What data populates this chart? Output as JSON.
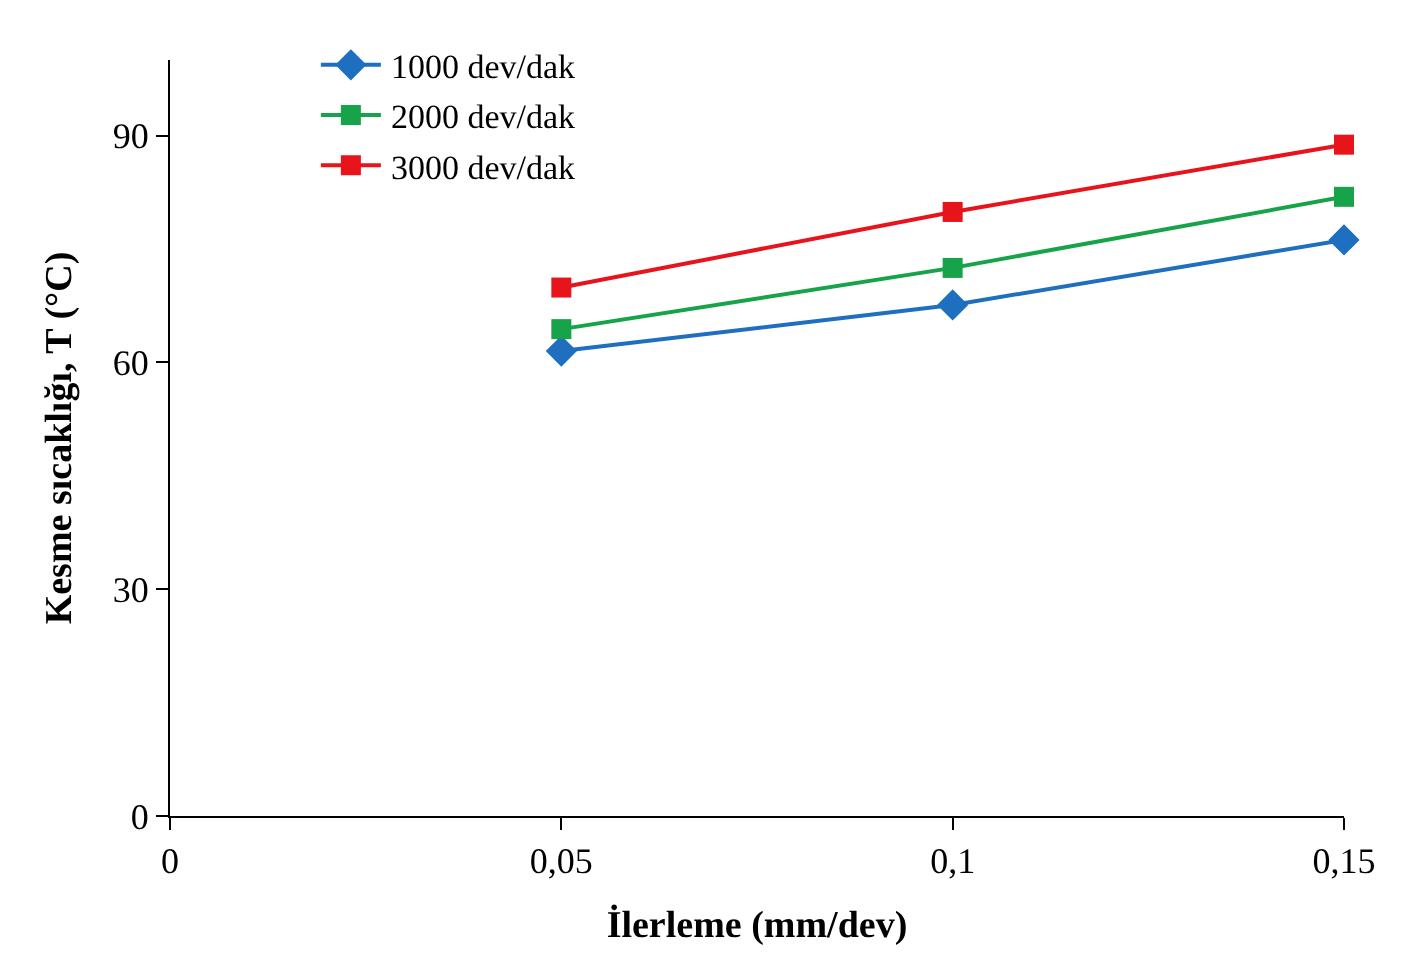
{
  "chart_data": {
    "type": "line",
    "xlabel": "İlerleme (mm/dev)",
    "ylabel": "Kesme sıcaklığı, T (°C)",
    "x": [
      0.05,
      0.1,
      0.15
    ],
    "series": [
      {
        "name": "1000 dev/dak",
        "color": "#1f6fc0",
        "marker": "diamond",
        "values": [
          61.5,
          67.6,
          76.2
        ]
      },
      {
        "name": "2000 dev/dak",
        "color": "#17a34a",
        "marker": "square",
        "values": [
          64.4,
          72.5,
          81.9
        ]
      },
      {
        "name": "3000 dev/dak",
        "color": "#e8141b",
        "marker": "square",
        "values": [
          69.9,
          79.9,
          88.8
        ]
      }
    ],
    "xlim": [
      0,
      0.15
    ],
    "xticks": [
      0,
      {
        "value": 0.05,
        "label": "0,05"
      },
      {
        "value": 0.1,
        "label": "0,1"
      },
      {
        "value": 0.15,
        "label": "0,15"
      }
    ],
    "ylim": [
      0,
      100
    ],
    "yticks": [
      0,
      30,
      60,
      90
    ],
    "legend": "top left",
    "line_style": "solid"
  }
}
